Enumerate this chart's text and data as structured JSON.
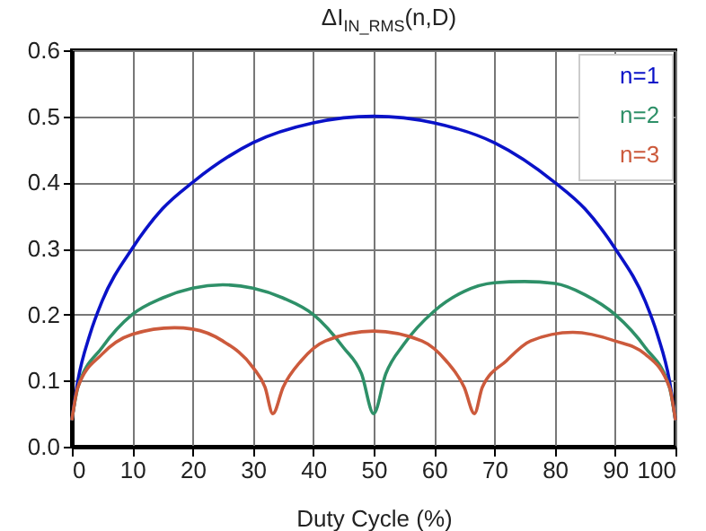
{
  "chart_data": {
    "type": "line",
    "title": "ΔI$_{IN_RMS}$(n,D)",
    "xlabel": "Duty Cycle (%)",
    "xlim": [
      0,
      100
    ],
    "xticks": [
      0,
      10,
      20,
      30,
      40,
      50,
      60,
      70,
      80,
      90,
      100
    ],
    "ylim": [
      0,
      0.6
    ],
    "yticks": [
      {
        "value": 0,
        "label": "0.0"
      },
      0.1,
      0.2,
      0.3,
      0.4,
      0.5,
      0.6
    ],
    "grid": true,
    "legend": "top right",
    "series": [
      {
        "name": "n=1",
        "color": "#0a12c8",
        "x": [
          0,
          1,
          3,
          5,
          10,
          15,
          20,
          30,
          40,
          50,
          60,
          70,
          80,
          85,
          90,
          95,
          97,
          99,
          100
        ],
        "values": [
          0.04,
          0.1,
          0.17,
          0.22,
          0.3,
          0.36,
          0.4,
          0.46,
          0.49,
          0.5,
          0.49,
          0.46,
          0.4,
          0.36,
          0.3,
          0.22,
          0.17,
          0.1,
          0.04
        ]
      },
      {
        "name": "n=2",
        "color": "#2e9068",
        "x": [
          0,
          1,
          5,
          10,
          15,
          20,
          25,
          30,
          35,
          40,
          45,
          48,
          50,
          52,
          55,
          60,
          65,
          70,
          75,
          80,
          85,
          90,
          95,
          99,
          100
        ],
        "values": [
          0.04,
          0.09,
          0.15,
          0.2,
          0.225,
          0.24,
          0.245,
          0.24,
          0.225,
          0.2,
          0.15,
          0.11,
          0.05,
          0.11,
          0.155,
          0.205,
          0.235,
          0.248,
          0.25,
          0.247,
          0.23,
          0.2,
          0.15,
          0.09,
          0.04
        ]
      },
      {
        "name": "n=3",
        "color": "#cc5a3c",
        "x": [
          0,
          1,
          5,
          10,
          17,
          20,
          25,
          30,
          32,
          33.3,
          35,
          38,
          42,
          50,
          58,
          62,
          65,
          66.7,
          68,
          72,
          76,
          83,
          90,
          95,
          99,
          100
        ],
        "values": [
          0.04,
          0.09,
          0.14,
          0.17,
          0.18,
          0.178,
          0.16,
          0.12,
          0.09,
          0.05,
          0.09,
          0.13,
          0.16,
          0.175,
          0.16,
          0.13,
          0.09,
          0.05,
          0.09,
          0.13,
          0.16,
          0.173,
          0.16,
          0.14,
          0.09,
          0.04
        ]
      }
    ]
  }
}
